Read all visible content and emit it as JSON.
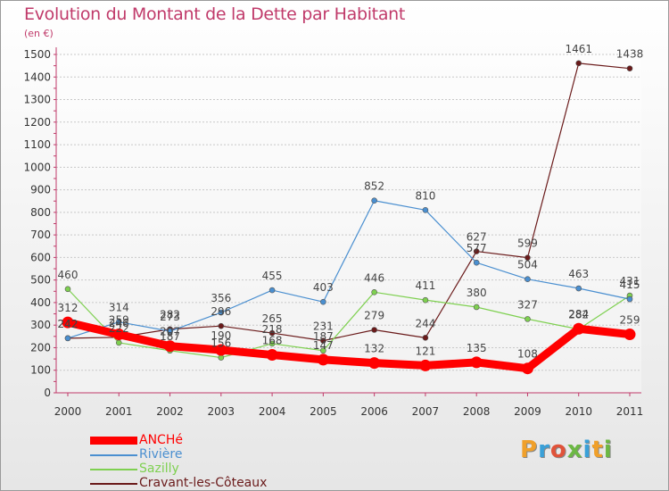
{
  "title": "Evolution du Montant de la Dette par Habitant",
  "unit": "(en €)",
  "logo_letters": [
    "P",
    "r",
    "o",
    "x",
    "i",
    "t",
    "i"
  ],
  "logo_colors": [
    "#f0a02a",
    "#3aa0d8",
    "#e0533a",
    "#6cb844",
    "#3aa0d8",
    "#f0a02a",
    "#6cb844"
  ],
  "chart_data": {
    "type": "line",
    "title": "Evolution du Montant de la Dette par Habitant",
    "ylabel": "(en €)",
    "xlabel": "",
    "ylim": [
      0,
      1500
    ],
    "yticks": [
      0,
      100,
      200,
      300,
      400,
      500,
      600,
      700,
      800,
      900,
      1000,
      1100,
      1200,
      1300,
      1400,
      1500
    ],
    "categories": [
      "2000",
      "2001",
      "2002",
      "2003",
      "2004",
      "2005",
      "2006",
      "2007",
      "2008",
      "2009",
      "2010",
      "2011"
    ],
    "grid": "horizontal",
    "legend_position": "bottom-left",
    "series": [
      {
        "name": "ANCHé",
        "color": "#ff0000",
        "values": [
          312,
          259,
          207,
          190,
          168,
          147,
          132,
          121,
          135,
          108,
          284,
          259
        ],
        "show_labels": true
      },
      {
        "name": "Rivière",
        "color": "#4a8fd0",
        "values": [
          242,
          314,
          273,
          356,
          455,
          403,
          852,
          810,
          577,
          504,
          463,
          415
        ],
        "show_labels": true
      },
      {
        "name": "Sazilly",
        "color": "#7ed050",
        "values": [
          460,
          222,
          187,
          156,
          218,
          187,
          446,
          411,
          380,
          327,
          282,
          431
        ],
        "show_labels": true
      },
      {
        "name": "Cravant-les-Côteaux",
        "color": "#6a1a1a",
        "values": [
          242,
          246,
          282,
          296,
          265,
          231,
          279,
          244,
          627,
          599,
          1461,
          1438
        ],
        "show_labels": true
      }
    ],
    "value_labels": {
      "ANCHé": [
        "312",
        "259",
        "207",
        "190",
        "168",
        "147",
        "132",
        "121",
        "135",
        "108",
        "284",
        "259"
      ],
      "Rivière": [
        "242",
        "314",
        "273",
        "356",
        "455",
        "403",
        "852",
        "810",
        "577",
        "504",
        "463",
        "415"
      ],
      "Sazilly": [
        "460",
        "222",
        "187",
        "156",
        "218",
        "187",
        "446",
        "411",
        "380",
        "327",
        "282",
        "431"
      ],
      "Cravant-les-Côteaux": [
        "242",
        "246",
        "282",
        "296",
        "265",
        "231",
        "279",
        "244",
        "627",
        "599",
        "1461",
        "1438"
      ]
    }
  }
}
